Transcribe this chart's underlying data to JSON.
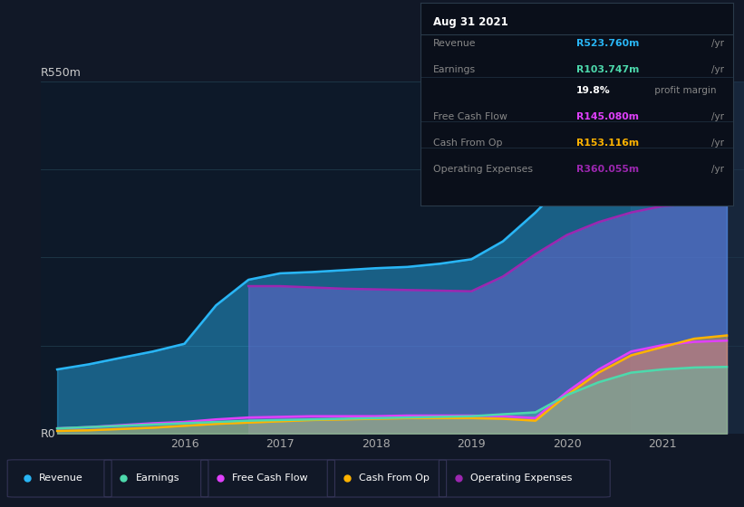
{
  "bg_color": "#111827",
  "plot_bg_color": "#0d1929",
  "title_label": "R550m",
  "y0_label": "R0",
  "xlabel_ticks": [
    "2016",
    "2017",
    "2018",
    "2019",
    "2020",
    "2021"
  ],
  "ylim": [
    0,
    550
  ],
  "xlim": [
    2014.5,
    2021.85
  ],
  "series": {
    "Revenue": {
      "color": "#29b6f6",
      "fill_alpha": 0.45,
      "x": [
        2014.67,
        2015.0,
        2015.33,
        2015.67,
        2016.0,
        2016.33,
        2016.67,
        2017.0,
        2017.33,
        2017.67,
        2018.0,
        2018.33,
        2018.67,
        2019.0,
        2019.33,
        2019.67,
        2020.0,
        2020.33,
        2020.67,
        2021.0,
        2021.33,
        2021.67
      ],
      "y": [
        100,
        108,
        118,
        128,
        140,
        200,
        240,
        250,
        252,
        255,
        258,
        260,
        265,
        272,
        300,
        345,
        395,
        435,
        470,
        500,
        515,
        524
      ]
    },
    "Earnings": {
      "color": "#4dd9ac",
      "fill_alpha": 0.35,
      "x": [
        2014.67,
        2015.0,
        2015.33,
        2015.67,
        2016.0,
        2016.33,
        2016.67,
        2017.0,
        2017.33,
        2017.67,
        2018.0,
        2018.33,
        2018.67,
        2019.0,
        2019.33,
        2019.67,
        2020.0,
        2020.33,
        2020.67,
        2021.0,
        2021.33,
        2021.67
      ],
      "y": [
        8,
        10,
        12,
        14,
        16,
        18,
        20,
        21,
        22,
        23,
        24,
        25,
        26,
        27,
        30,
        33,
        60,
        80,
        95,
        100,
        103,
        104
      ]
    },
    "Free Cash Flow": {
      "color": "#e040fb",
      "fill_alpha": 0.3,
      "x": [
        2014.67,
        2015.0,
        2015.33,
        2015.67,
        2016.0,
        2016.33,
        2016.67,
        2017.0,
        2017.33,
        2017.67,
        2018.0,
        2018.33,
        2018.67,
        2019.0,
        2019.33,
        2019.67,
        2020.0,
        2020.33,
        2020.67,
        2021.0,
        2021.33,
        2021.67
      ],
      "y": [
        8,
        10,
        13,
        16,
        18,
        22,
        25,
        26,
        27,
        27,
        27,
        28,
        28,
        28,
        27,
        24,
        65,
        100,
        128,
        138,
        143,
        145
      ]
    },
    "Cash From Op": {
      "color": "#ffb300",
      "fill_alpha": 0.35,
      "x": [
        2014.67,
        2015.0,
        2015.33,
        2015.67,
        2016.0,
        2016.33,
        2016.67,
        2017.0,
        2017.33,
        2017.67,
        2018.0,
        2018.33,
        2018.67,
        2019.0,
        2019.33,
        2019.67,
        2020.0,
        2020.33,
        2020.67,
        2021.0,
        2021.33,
        2021.67
      ],
      "y": [
        4,
        5,
        7,
        9,
        12,
        15,
        17,
        19,
        21,
        22,
        23,
        24,
        24,
        24,
        23,
        20,
        60,
        95,
        122,
        135,
        148,
        153
      ]
    },
    "Operating Expenses": {
      "color": "#9c27b0",
      "fill_alpha": 0.55,
      "x": [
        2016.67,
        2017.0,
        2017.33,
        2017.67,
        2018.0,
        2018.33,
        2018.67,
        2019.0,
        2019.33,
        2019.67,
        2020.0,
        2020.33,
        2020.67,
        2021.0,
        2021.33,
        2021.67
      ],
      "y": [
        230,
        230,
        228,
        226,
        225,
        224,
        223,
        222,
        245,
        280,
        310,
        330,
        345,
        355,
        358,
        360
      ]
    }
  },
  "tooltip": {
    "date": "Aug 31 2021",
    "rows": [
      {
        "label": "Revenue",
        "value": "R523.760m",
        "unit": "/yr",
        "value_color": "#29b6f6",
        "label_color": "#888888"
      },
      {
        "label": "Earnings",
        "value": "R103.747m",
        "unit": "/yr",
        "value_color": "#4dd9ac",
        "label_color": "#888888"
      },
      {
        "label": "",
        "value": "19.8%",
        "unit": " profit margin",
        "value_color": "#ffffff",
        "label_color": "#888888"
      },
      {
        "label": "Free Cash Flow",
        "value": "R145.080m",
        "unit": "/yr",
        "value_color": "#e040fb",
        "label_color": "#888888"
      },
      {
        "label": "Cash From Op",
        "value": "R153.116m",
        "unit": "/yr",
        "value_color": "#ffb300",
        "label_color": "#888888"
      },
      {
        "label": "Operating Expenses",
        "value": "R360.055m",
        "unit": "/yr",
        "value_color": "#9c27b0",
        "label_color": "#888888"
      }
    ]
  },
  "legend": [
    {
      "label": "Revenue",
      "color": "#29b6f6"
    },
    {
      "label": "Earnings",
      "color": "#4dd9ac"
    },
    {
      "label": "Free Cash Flow",
      "color": "#e040fb"
    },
    {
      "label": "Cash From Op",
      "color": "#ffb300"
    },
    {
      "label": "Operating Expenses",
      "color": "#9c27b0"
    }
  ],
  "highlight_x_start": 2020.67,
  "highlight_x_end": 2021.85,
  "highlight_color": "#1e3048"
}
